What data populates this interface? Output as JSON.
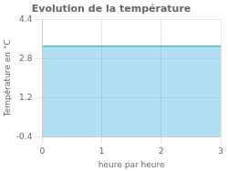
{
  "chart_data": {
    "type": "area",
    "title": "Evolution de la température",
    "xlabel": "heure par heure",
    "ylabel": "Température en °C",
    "x": [
      0,
      3
    ],
    "series": [
      {
        "color": "#55bbdd",
        "values": [
          3.3,
          3.3
        ]
      }
    ],
    "xlim": [
      0,
      3
    ],
    "xticks": [
      0,
      1,
      2,
      3
    ],
    "ylim": [
      -0.4,
      4.4
    ],
    "yticks": [
      -0.4,
      1.2,
      2.8,
      4.4
    ],
    "grid": true
  }
}
